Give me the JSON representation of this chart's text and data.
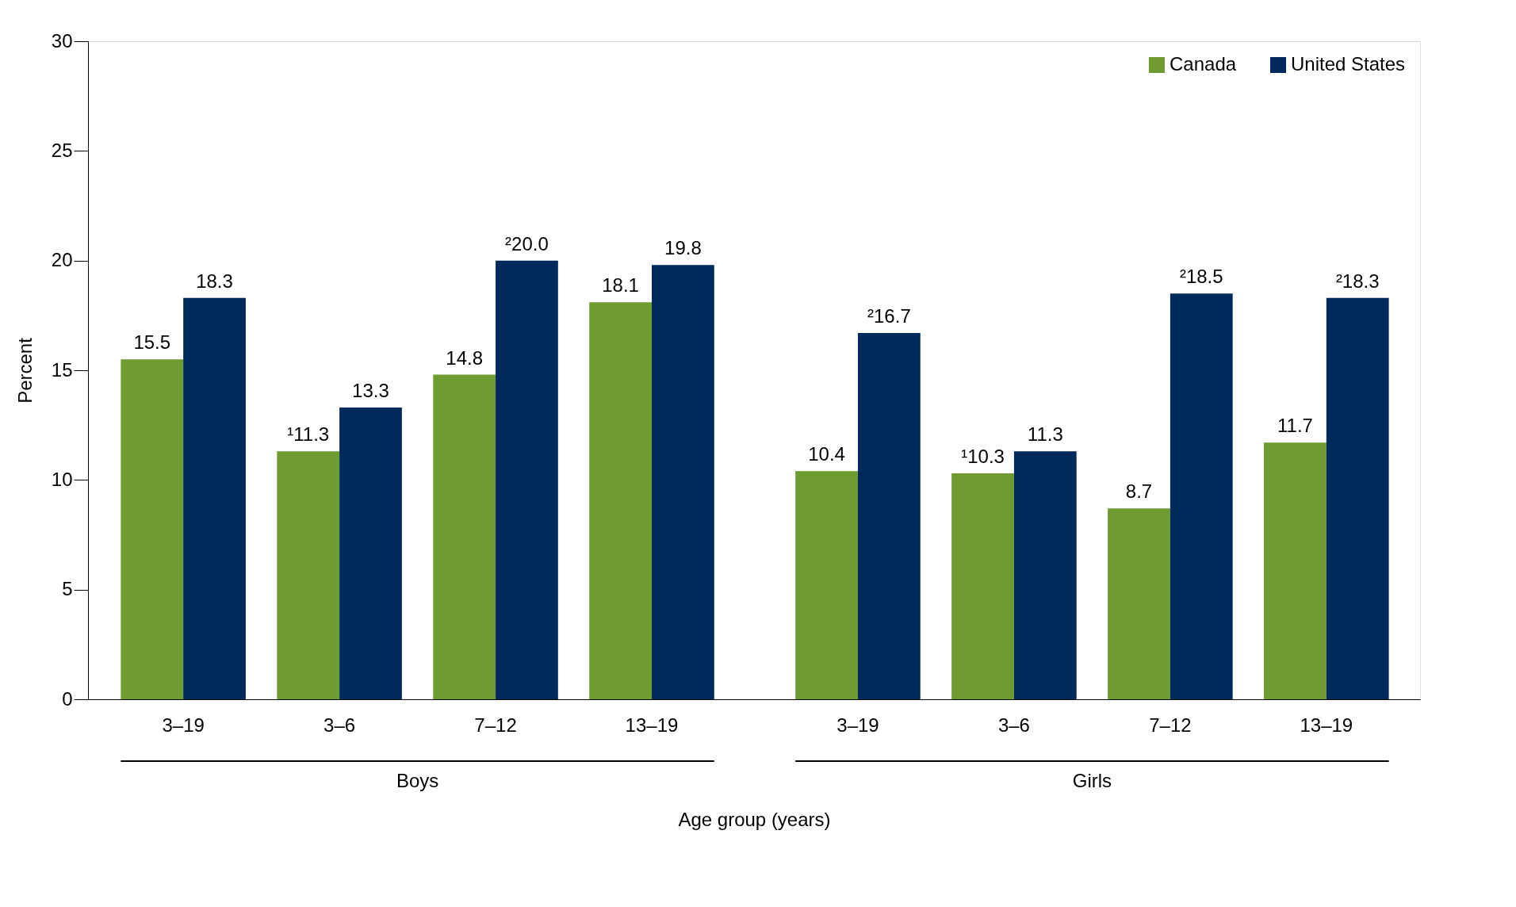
{
  "chart_data": {
    "type": "bar",
    "categories": [
      "3–19",
      "3–6",
      "7–12",
      "13–19",
      "3–19",
      "3–6",
      "7–12",
      "13–19"
    ],
    "series": [
      {
        "name": "Canada",
        "color": "#6e9c31",
        "values": [
          15.5,
          11.3,
          14.8,
          18.1,
          10.4,
          10.3,
          8.7,
          11.7
        ],
        "value_labels": [
          "15.5",
          "¹11.3",
          "14.8",
          "18.1",
          "10.4",
          "¹10.3",
          "8.7",
          "11.7"
        ]
      },
      {
        "name": "United States",
        "color": "#002a5c",
        "values": [
          18.3,
          13.3,
          20.0,
          19.8,
          16.7,
          11.3,
          18.5,
          18.3
        ],
        "value_labels": [
          "18.3",
          "13.3",
          "²20.0",
          "19.8",
          "²16.7",
          "11.3",
          "²18.5",
          "²18.3"
        ]
      }
    ],
    "xlabel": "Age group (years)",
    "ylabel": "Percent",
    "ylim": [
      0,
      30
    ],
    "yticks": [
      0,
      5,
      10,
      15,
      20,
      25,
      30
    ],
    "annotations": [
      "Boys",
      "Girls"
    ],
    "grid": false,
    "legend": "top right"
  }
}
